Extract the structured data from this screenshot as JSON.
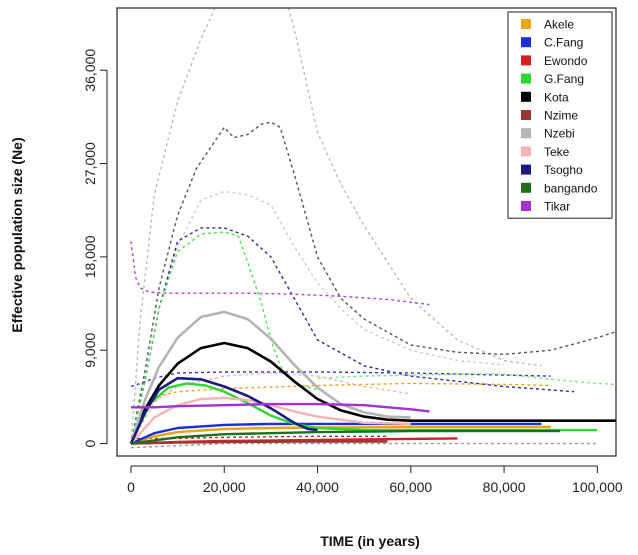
{
  "chart_data": {
    "type": "line",
    "title": "",
    "xlabel": "TIME (in years)",
    "ylabel": "Effective population size (Ne)",
    "xlim": [
      -3000,
      104000
    ],
    "ylim": [
      -1200,
      42000
    ],
    "xticks": [
      0,
      20000,
      40000,
      60000,
      80000,
      100000
    ],
    "xtick_labels": [
      "0",
      "20,000",
      "40,000",
      "60,000",
      "80,000",
      "100,000"
    ],
    "yticks": [
      0,
      9000,
      18000,
      27000,
      36000
    ],
    "ytick_labels": [
      "0",
      "9,000",
      "18,000",
      "27,000",
      "36,000"
    ],
    "grid": false,
    "legend_position": "top-right",
    "series": [
      {
        "name": "Akele",
        "color": "#e8a31c",
        "style": "solid",
        "x": [
          0,
          5000,
          10000,
          20000,
          30000,
          40000,
          60000,
          80000,
          90000
        ],
        "y": [
          0,
          700,
          1100,
          1400,
          1500,
          1550,
          1600,
          1600,
          1600
        ]
      },
      {
        "name": "C.Fang",
        "color": "#1c2ed6",
        "style": "solid",
        "x": [
          0,
          5000,
          10000,
          20000,
          30000,
          40000,
          60000,
          80000,
          88000
        ],
        "y": [
          0,
          1000,
          1500,
          1800,
          1900,
          1900,
          1900,
          1900,
          1900
        ]
      },
      {
        "name": "Ewondo",
        "color": "#d42020",
        "style": "solid",
        "x": [
          0,
          10000,
          20000,
          40000,
          60000,
          70000
        ],
        "y": [
          0,
          150,
          250,
          350,
          450,
          500
        ]
      },
      {
        "name": "G.Fang",
        "color": "#2ed62e",
        "style": "solid",
        "x": [
          0,
          4000,
          8000,
          12000,
          16000,
          20000,
          25000,
          30000,
          35000,
          40000,
          50000,
          70000,
          100000
        ],
        "y": [
          0,
          3800,
          5400,
          5800,
          5600,
          5000,
          3900,
          2700,
          1900,
          1500,
          1300,
          1300,
          1300
        ]
      },
      {
        "name": "Kota",
        "color": "#000000",
        "style": "solid",
        "x": [
          0,
          3000,
          6000,
          10000,
          15000,
          20000,
          25000,
          30000,
          35000,
          40000,
          45000,
          50000,
          55000,
          60000,
          70000,
          104000
        ],
        "y": [
          0,
          3300,
          5600,
          7700,
          9200,
          9700,
          9200,
          7900,
          6000,
          4300,
          3200,
          2600,
          2300,
          2200,
          2200,
          2200
        ]
      },
      {
        "name": "Nzime",
        "color": "#9e3535",
        "style": "solid",
        "x": [
          0,
          10000,
          20000,
          40000,
          55000
        ],
        "y": [
          0,
          100,
          150,
          200,
          200
        ]
      },
      {
        "name": "Nzebi",
        "color": "#b4b4b4",
        "style": "solid",
        "x": [
          0,
          3000,
          6000,
          10000,
          15000,
          20000,
          25000,
          30000,
          35000,
          40000,
          45000,
          50000,
          55000,
          60000
        ],
        "y": [
          0,
          4200,
          7400,
          10200,
          12200,
          12700,
          12000,
          10100,
          7600,
          5400,
          3800,
          3000,
          2600,
          2500
        ]
      },
      {
        "name": "Teke",
        "color": "#f2b4b4",
        "style": "solid",
        "x": [
          0,
          5000,
          10000,
          15000,
          20000,
          25000,
          30000,
          35000,
          40000,
          50000,
          60000
        ],
        "y": [
          0,
          2500,
          3700,
          4300,
          4400,
          4200,
          3700,
          3100,
          2600,
          2000,
          1900
        ]
      },
      {
        "name": "Tsogho",
        "color": "#1a1a80",
        "style": "solid",
        "x": [
          0,
          3000,
          6000,
          10000,
          15000,
          20000,
          25000,
          30000,
          35000,
          38000,
          40000
        ],
        "y": [
          0,
          3000,
          5200,
          6300,
          6200,
          5500,
          4600,
          3400,
          2000,
          1400,
          1300
        ]
      },
      {
        "name": "bangando",
        "color": "#1e6e1e",
        "style": "solid",
        "x": [
          0,
          10000,
          20000,
          40000,
          60000,
          80000,
          92000
        ],
        "y": [
          0,
          600,
          900,
          1100,
          1200,
          1200,
          1200
        ]
      },
      {
        "name": "Tikar",
        "color": "#a232d2",
        "style": "solid",
        "x": [
          0,
          5000,
          10000,
          20000,
          30000,
          40000,
          50000,
          60000,
          64000
        ],
        "y": [
          3500,
          3500,
          3600,
          3700,
          3800,
          3800,
          3700,
          3300,
          3100
        ]
      }
    ],
    "confidence_bounds": [
      {
        "color": "#bbbbbb",
        "x": [
          0,
          2000,
          5000,
          10000,
          15000,
          18000,
          20000,
          25000,
          30000,
          35000,
          40000,
          45000,
          50000,
          60000,
          70000,
          80000,
          88000
        ],
        "y": [
          0,
          12000,
          24000,
          33000,
          39000,
          42000,
          45000,
          48000,
          48000,
          40000,
          30000,
          25000,
          21000,
          14000,
          10000,
          8000,
          7500
        ]
      },
      {
        "color": "#555555",
        "x": [
          0,
          3000,
          6000,
          10000,
          14000,
          17000,
          20000,
          22000,
          25000,
          28000,
          30000,
          32000,
          35000,
          40000,
          45000,
          50000,
          60000,
          70000,
          80000,
          90000,
          100000,
          104000
        ],
        "y": [
          0,
          7000,
          15000,
          22000,
          26500,
          28500,
          30500,
          29500,
          29800,
          30800,
          31000,
          30500,
          26000,
          18000,
          14000,
          12000,
          9500,
          8800,
          8600,
          9000,
          10200,
          10800
        ]
      },
      {
        "color": "#cccccc",
        "x": [
          0,
          3000,
          6000,
          10000,
          15000,
          20000,
          25000,
          30000,
          35000,
          40000,
          45000,
          50000,
          60000,
          70000,
          80000
        ],
        "y": [
          0,
          6000,
          13000,
          19000,
          23500,
          24300,
          24000,
          23000,
          19000,
          15500,
          13000,
          11000,
          9000,
          8000,
          7600
        ]
      },
      {
        "color": "#2a2aa0",
        "x": [
          0,
          3000,
          6000,
          10000,
          15000,
          20000,
          25000,
          30000,
          35000,
          40000,
          50000,
          60000,
          80000,
          95000
        ],
        "y": [
          0,
          6000,
          13000,
          19500,
          20800,
          20800,
          20000,
          18000,
          14000,
          10000,
          7500,
          6500,
          5500,
          5000
        ]
      },
      {
        "color": "#50e050",
        "x": [
          0,
          3000,
          6000,
          10000,
          15000,
          20000,
          23000,
          25000,
          28000,
          30000,
          32000,
          35000,
          40000
        ],
        "y": [
          0,
          6000,
          13000,
          18500,
          20200,
          20400,
          20000,
          17500,
          13500,
          10000,
          7500,
          5800,
          5200
        ]
      },
      {
        "color": "#b048d8",
        "x": [
          0,
          1000,
          2000,
          4000,
          8000,
          15000,
          25000,
          35000,
          45000,
          55000,
          64000
        ],
        "y": [
          19500,
          16000,
          15000,
          14600,
          14500,
          14500,
          14500,
          14400,
          14200,
          13900,
          13400
        ]
      },
      {
        "color": "#3838c8",
        "x": [
          0,
          2000,
          5000,
          10000,
          20000,
          40000,
          60000,
          80000,
          90000
        ],
        "y": [
          5500,
          5800,
          6300,
          6800,
          6900,
          6900,
          6800,
          6600,
          6500
        ]
      },
      {
        "color": "#e8a31c",
        "x": [
          0,
          5000,
          10000,
          20000,
          40000,
          60000,
          80000,
          90000
        ],
        "y": [
          0,
          4500,
          5000,
          5300,
          5600,
          5800,
          5700,
          5600
        ]
      },
      {
        "color": "#80e880",
        "x": [
          40000,
          50000,
          60000,
          70000,
          80000,
          90000,
          100000,
          104000
        ],
        "y": [
          6300,
          6500,
          6600,
          6700,
          6700,
          6200,
          5800,
          5700
        ]
      },
      {
        "color": "#f2b4b4",
        "x": [
          0,
          5000,
          10000,
          20000,
          30000,
          40000,
          50000,
          60000
        ],
        "y": [
          0,
          4000,
          5500,
          6500,
          6800,
          6500,
          5500,
          4800
        ]
      },
      {
        "color": "#999999",
        "x": [
          0,
          10000,
          20000,
          40000,
          60000,
          80000,
          100000
        ],
        "y": [
          -400,
          -200,
          0,
          0,
          0,
          0,
          0
        ]
      },
      {
        "color": "#9e3535",
        "x": [
          0,
          10000,
          20000,
          40000,
          55000
        ],
        "y": [
          500,
          500,
          600,
          700,
          700
        ]
      }
    ]
  }
}
